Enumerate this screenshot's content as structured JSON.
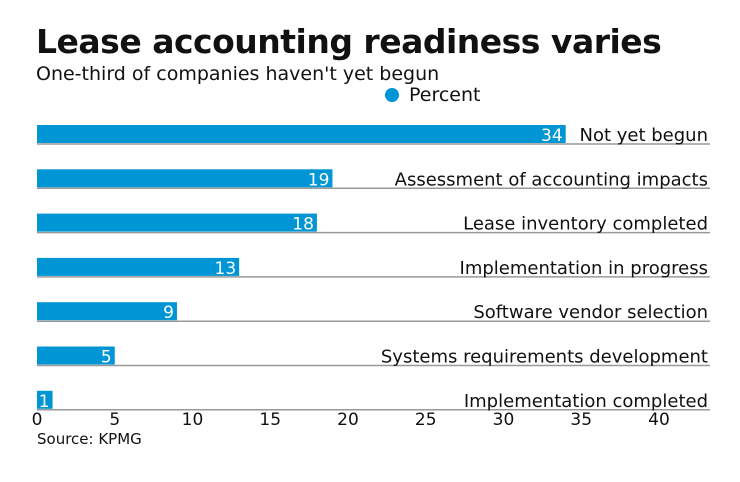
{
  "chart_data": {
    "type": "bar",
    "orientation": "horizontal",
    "title": "Lease accounting readiness varies",
    "subtitle": "One-third of companies haven't yet begun",
    "categories": [
      "Not yet begun",
      "Assessment of accounting impacts",
      "Lease inventory completed",
      "Implementation in progress",
      "Software vendor selection",
      "Systems requirements development",
      "Implementation completed"
    ],
    "series": [
      {
        "name": "Percent",
        "values": [
          34,
          19,
          18,
          13,
          9,
          5,
          1
        ],
        "color": "#0096d6"
      }
    ],
    "xlim": [
      0,
      43
    ],
    "xticks": [
      0,
      5,
      10,
      15,
      20,
      25,
      30,
      35,
      40
    ],
    "legend": "top-center",
    "grid": false,
    "data_labels": true,
    "source": "Source: KPMG"
  }
}
